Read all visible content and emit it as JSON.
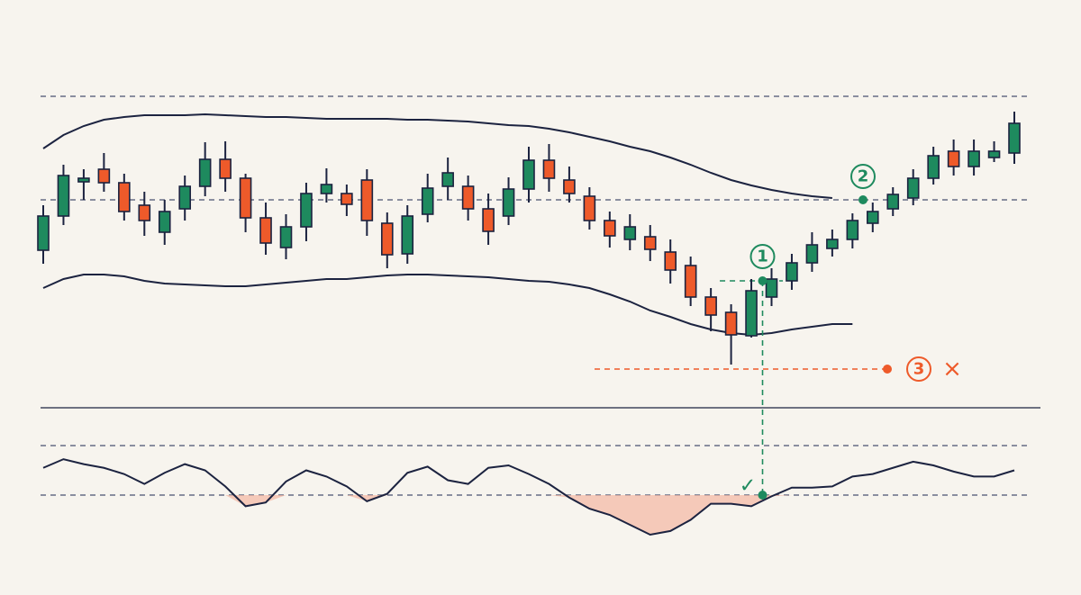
{
  "chart_data": {
    "type": "candlestick",
    "ylim": [
      0,
      370
    ],
    "up_color": "#1e8a5e",
    "down_color": "#ee5a2a",
    "open": [
      182,
      220,
      258,
      272,
      257,
      232,
      202,
      228,
      253,
      283,
      262,
      218,
      185,
      208,
      245,
      245,
      260,
      212,
      178,
      222,
      253,
      253,
      228,
      220,
      250,
      282,
      260,
      242,
      215,
      194,
      197,
      180,
      165,
      130,
      113,
      87,
      130,
      148,
      168,
      184,
      194,
      212,
      228,
      240,
      262,
      292,
      275,
      285,
      290
    ],
    "high": [
      232,
      277,
      272,
      290,
      267,
      247,
      238,
      265,
      302,
      303,
      267,
      235,
      222,
      257,
      273,
      255,
      272,
      224,
      232,
      267,
      285,
      265,
      245,
      263,
      297,
      300,
      275,
      252,
      225,
      222,
      210,
      194,
      175,
      140,
      122,
      150,
      162,
      178,
      202,
      205,
      223,
      235,
      252,
      272,
      297,
      305,
      305,
      303,
      336
    ],
    "low": [
      167,
      210,
      238,
      247,
      215,
      198,
      188,
      215,
      242,
      247,
      202,
      177,
      172,
      192,
      235,
      220,
      198,
      162,
      167,
      213,
      238,
      215,
      188,
      210,
      235,
      247,
      235,
      205,
      185,
      182,
      170,
      145,
      120,
      92,
      55,
      85,
      120,
      138,
      158,
      175,
      184,
      202,
      220,
      232,
      255,
      265,
      265,
      280,
      278
    ],
    "close": [
      220,
      265,
      262,
      257,
      225,
      215,
      225,
      253,
      283,
      262,
      218,
      190,
      208,
      245,
      255,
      233,
      215,
      177,
      220,
      251,
      268,
      228,
      203,
      250,
      282,
      262,
      245,
      215,
      198,
      208,
      183,
      160,
      130,
      110,
      88,
      137,
      150,
      168,
      188,
      194,
      215,
      225,
      244,
      262,
      287,
      275,
      292,
      292,
      323
    ],
    "upper_band": [
      295,
      310,
      320,
      327,
      330,
      332,
      332,
      332,
      333,
      332,
      331,
      330,
      330,
      329,
      328,
      328,
      328,
      328,
      327,
      327,
      326,
      325,
      323,
      321,
      320,
      317,
      313,
      308,
      303,
      297,
      292,
      285,
      277,
      268,
      260,
      254,
      249,
      245,
      242,
      240,
      null,
      null,
      null,
      null,
      null,
      null,
      null,
      null,
      null
    ],
    "lower_band": [
      140,
      150,
      155,
      155,
      153,
      148,
      145,
      144,
      143,
      142,
      142,
      144,
      146,
      148,
      150,
      150,
      152,
      154,
      155,
      155,
      154,
      153,
      152,
      150,
      148,
      147,
      144,
      140,
      133,
      125,
      115,
      108,
      100,
      94,
      90,
      88,
      90,
      94,
      97,
      100,
      100,
      null,
      null,
      null,
      null,
      null,
      null,
      null,
      null
    ],
    "reference_lines": [
      353,
      238
    ],
    "entry_level": 148,
    "stop_level": 50,
    "oscillator": {
      "ylim": [
        -10,
        100
      ],
      "levels": [
        70,
        30
      ],
      "values": [
        52,
        59,
        55,
        52,
        47,
        39,
        48,
        55,
        50,
        37,
        21,
        24,
        41,
        50,
        45,
        37,
        25,
        31,
        48,
        53,
        42,
        39,
        52,
        54,
        47,
        39,
        28,
        19,
        14,
        6,
        -2,
        1,
        10,
        23,
        23,
        21,
        29,
        36,
        36,
        37,
        45,
        47,
        52,
        57,
        54,
        49,
        45,
        45,
        50
      ]
    },
    "annotations": [
      {
        "label": "1"
      },
      {
        "label": "2"
      },
      {
        "label": "3"
      },
      {
        "label": "×"
      },
      {
        "label": "✓"
      }
    ]
  }
}
